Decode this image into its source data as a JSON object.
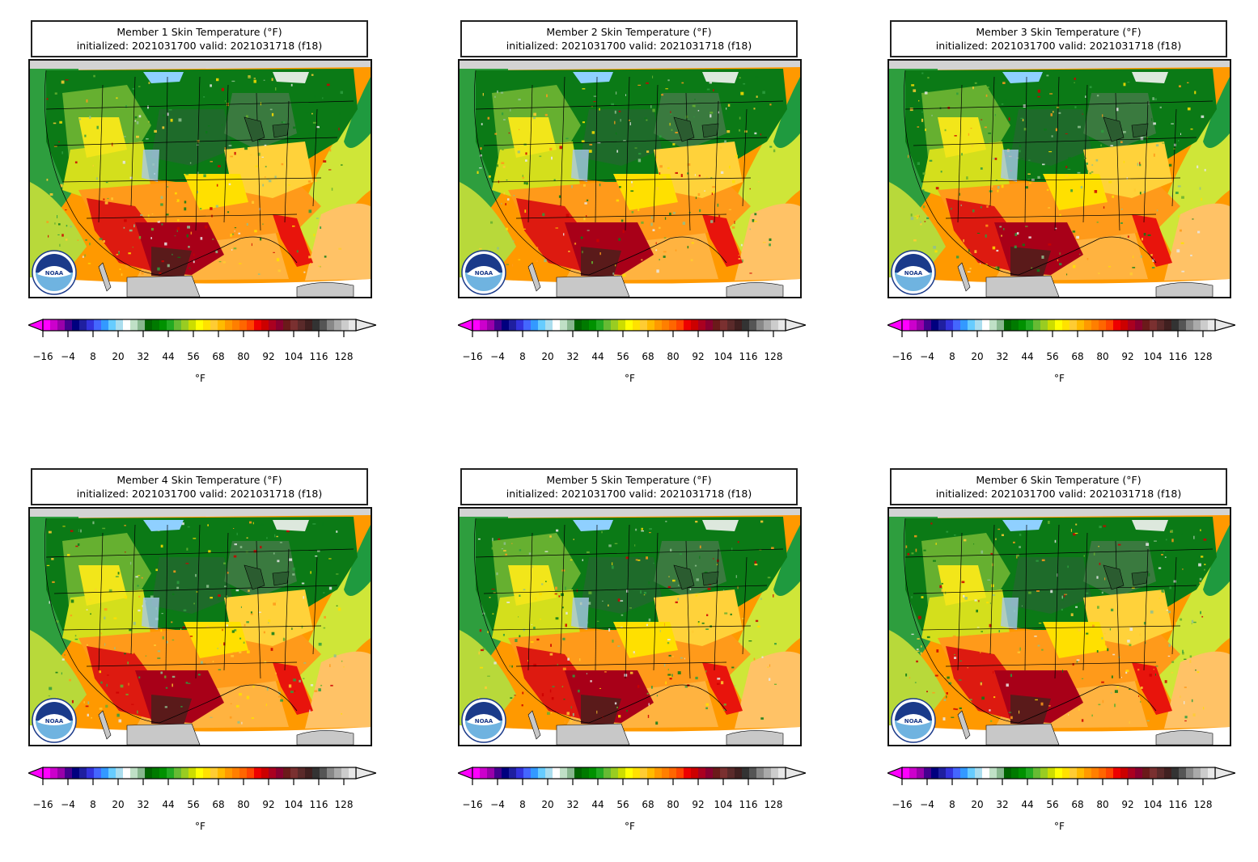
{
  "panels": [
    {
      "title_line1": "Member 1 Skin Temperature (°F)",
      "title_line2": "initialized: 2021031700 valid: 2021031718 (f18)"
    },
    {
      "title_line1": "Member 2 Skin Temperature (°F)",
      "title_line2": "initialized: 2021031700 valid: 2021031718 (f18)"
    },
    {
      "title_line1": "Member 3 Skin Temperature (°F)",
      "title_line2": "initialized: 2021031700 valid: 2021031718 (f18)"
    },
    {
      "title_line1": "Member 4 Skin Temperature (°F)",
      "title_line2": "initialized: 2021031700 valid: 2021031718 (f18)"
    },
    {
      "title_line1": "Member 5 Skin Temperature (°F)",
      "title_line2": "initialized: 2021031700 valid: 2021031718 (f18)"
    },
    {
      "title_line1": "Member 6 Skin Temperature (°F)",
      "title_line2": "initialized: 2021031700 valid: 2021031718 (f18)"
    }
  ],
  "colorbar": {
    "unit": "°F",
    "ticks": [
      "−16",
      "−4",
      "8",
      "20",
      "32",
      "44",
      "56",
      "68",
      "80",
      "92",
      "104",
      "116",
      "128"
    ],
    "colors": [
      "#ff00ff",
      "#cc00cc",
      "#9900aa",
      "#44008f",
      "#00007f",
      "#1f1fa0",
      "#3333dd",
      "#4466ff",
      "#3399ff",
      "#66ccff",
      "#aaddee",
      "#ffffff",
      "#bfe0c6",
      "#88b88f",
      "#006400",
      "#007a00",
      "#009100",
      "#22aa22",
      "#66bb33",
      "#99cc22",
      "#ccdd00",
      "#ffff00",
      "#ffe100",
      "#ffcc33",
      "#ffbb00",
      "#ff9900",
      "#ff7f00",
      "#ff6600",
      "#ff4400",
      "#ee0000",
      "#cc0000",
      "#aa0020",
      "#880030",
      "#6b1a1a",
      "#7a3030",
      "#5a2a2a",
      "#402020",
      "#333333",
      "#555555",
      "#888888",
      "#aaaaaa",
      "#cccccc",
      "#e8e8e8"
    ]
  },
  "logo": {
    "text": "NOAA"
  }
}
